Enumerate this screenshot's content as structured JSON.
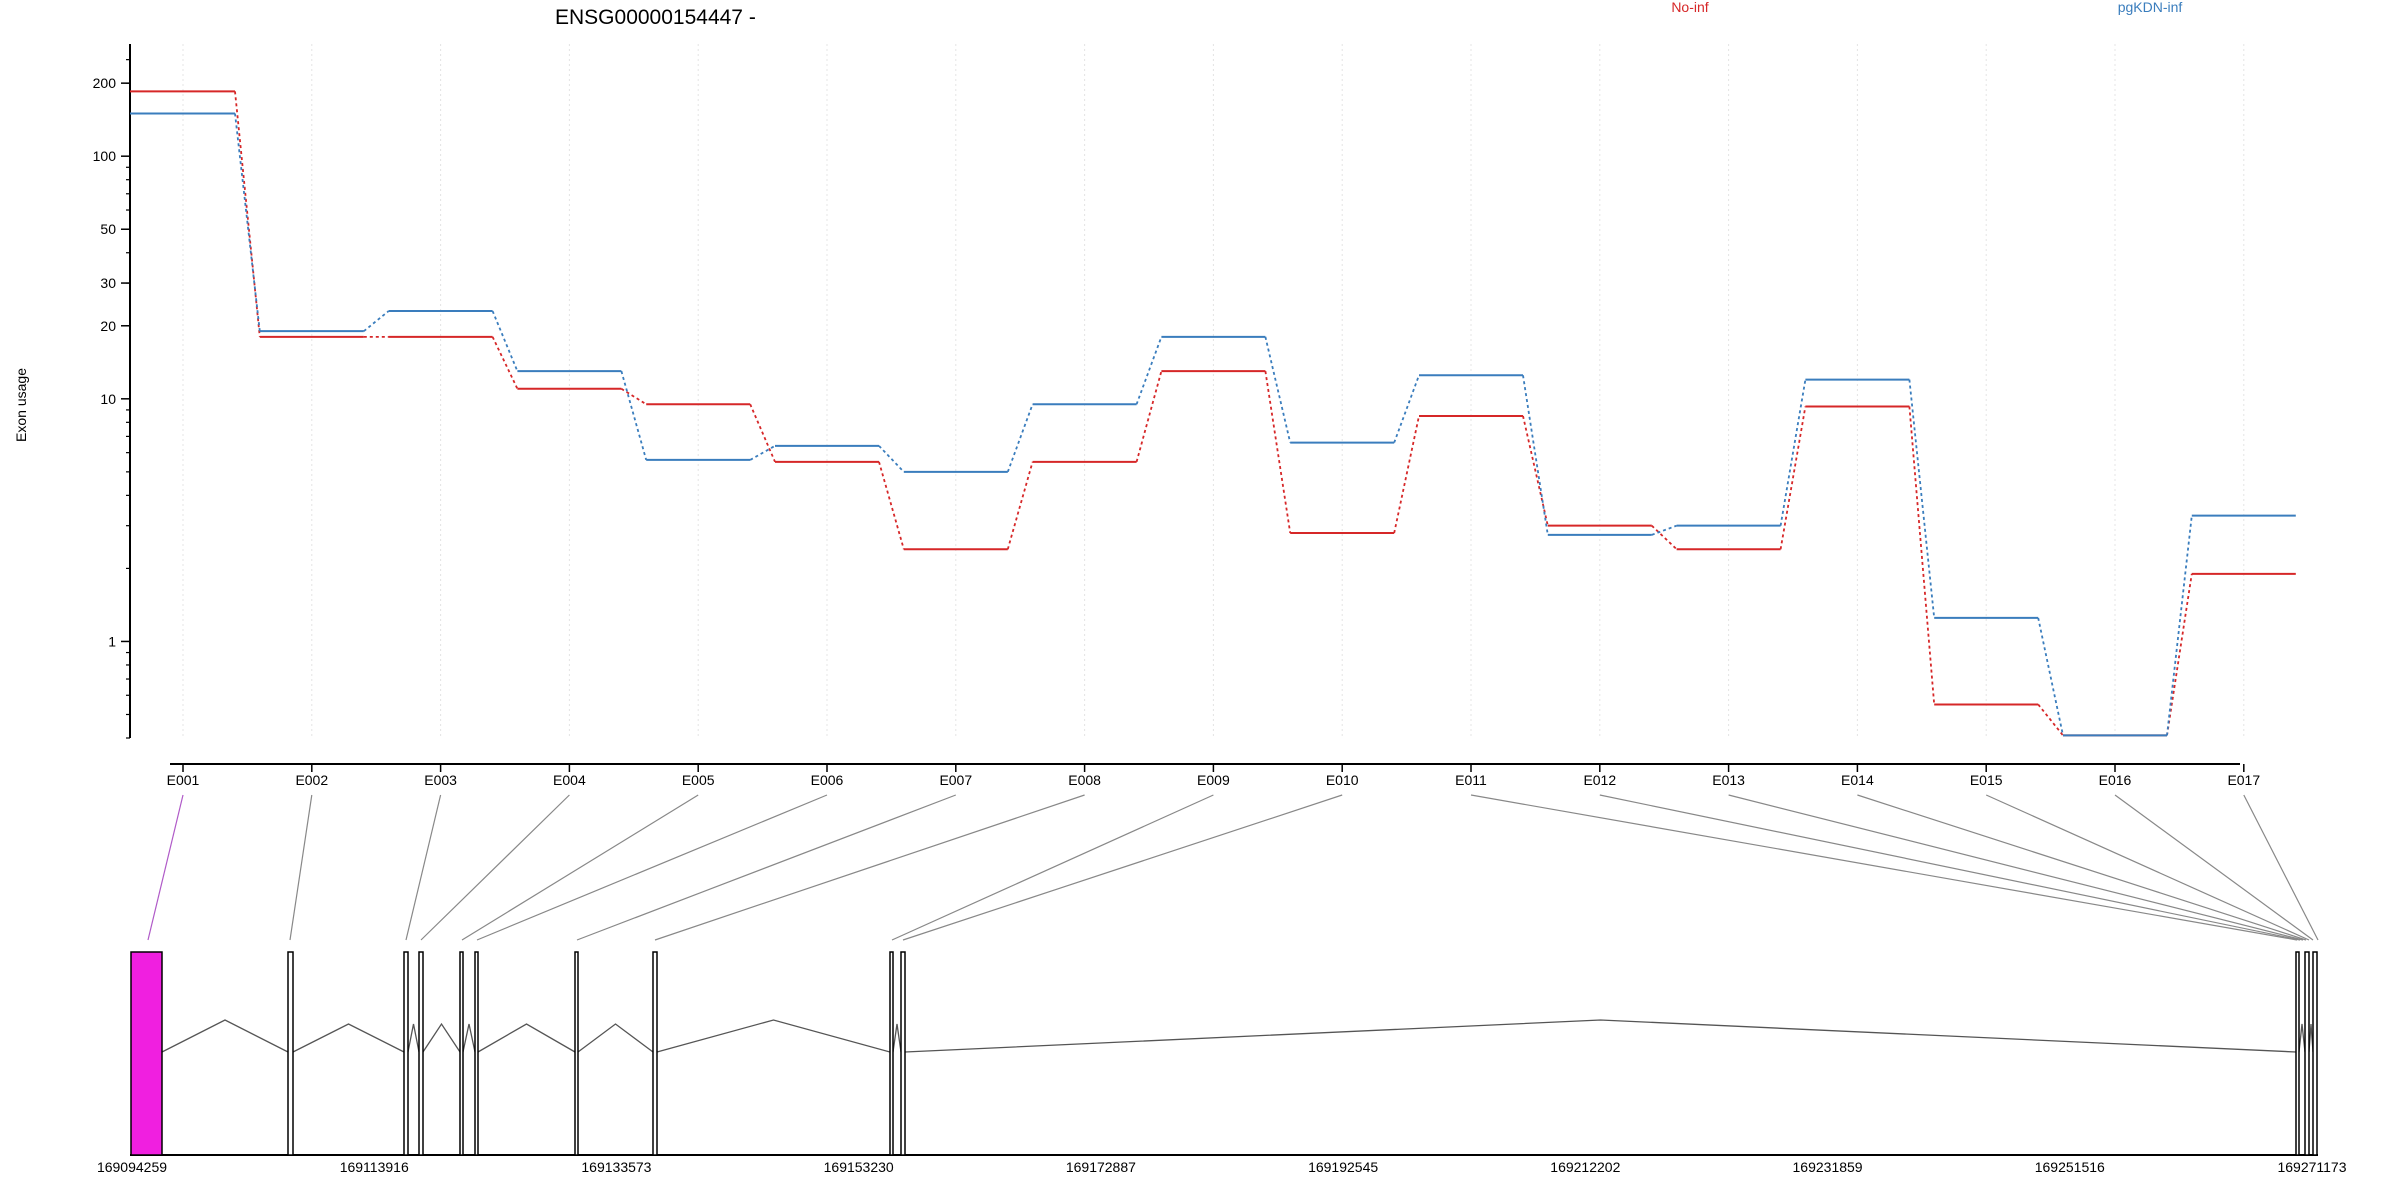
{
  "chart_data": {
    "type": "line",
    "title": "ENSG00000154447 -",
    "xlabel": "",
    "ylabel": "Exon usage",
    "yscale": "log",
    "ylim": [
      0.4,
      290
    ],
    "yticks": [
      1,
      10,
      20,
      30,
      50,
      100,
      200
    ],
    "grid": "vertical-dotted",
    "legend_position": "top-right",
    "categories": [
      "E001",
      "E002",
      "E003",
      "E004",
      "E005",
      "E006",
      "E007",
      "E008",
      "E009",
      "E010",
      "E011",
      "E012",
      "E013",
      "E014",
      "E015",
      "E016",
      "E017"
    ],
    "series": [
      {
        "name": "No-inf",
        "color": "#d62728",
        "values": [
          185,
          18,
          18,
          11,
          9.5,
          5.5,
          2.4,
          5.5,
          13,
          2.8,
          8.5,
          3,
          2.4,
          9.3,
          0.55,
          0.41,
          1.9
        ]
      },
      {
        "name": "pgKDN-inf",
        "color": "#3a7dbd",
        "values": [
          150,
          19,
          23,
          13,
          5.6,
          6.4,
          5,
          9.5,
          18,
          6.6,
          12.5,
          2.75,
          3,
          12,
          1.25,
          0.41,
          3.3
        ]
      }
    ],
    "gene_model": {
      "coordinate_ticks": [
        "169094259",
        "169113916",
        "169133573",
        "169153230",
        "169172887",
        "169192545",
        "169212202",
        "169231859",
        "169251516",
        "169271173"
      ],
      "highlight_exon": "E001",
      "highlight_color": "#f01fe0"
    }
  }
}
